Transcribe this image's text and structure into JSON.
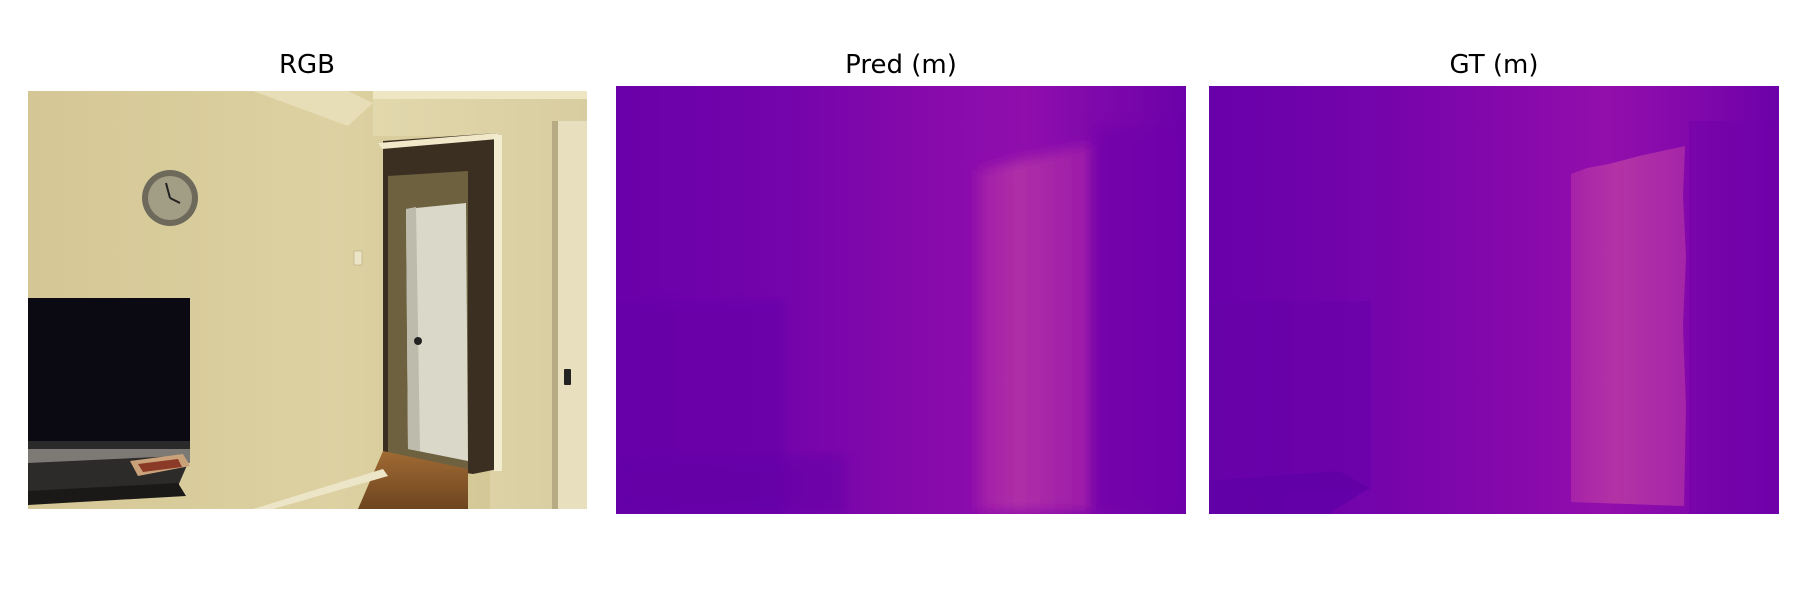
{
  "panels": [
    {
      "title": "RGB"
    },
    {
      "title": "Pred (m)"
    },
    {
      "title": "GT (m)"
    }
  ],
  "colors": {
    "depth_dark": "#6600aa",
    "depth_mid": "#8a09ab",
    "depth_light": "#b030a8",
    "wall": "#d8cc9a",
    "tv": "#0b0a12",
    "floor": "#8a5a2c"
  }
}
